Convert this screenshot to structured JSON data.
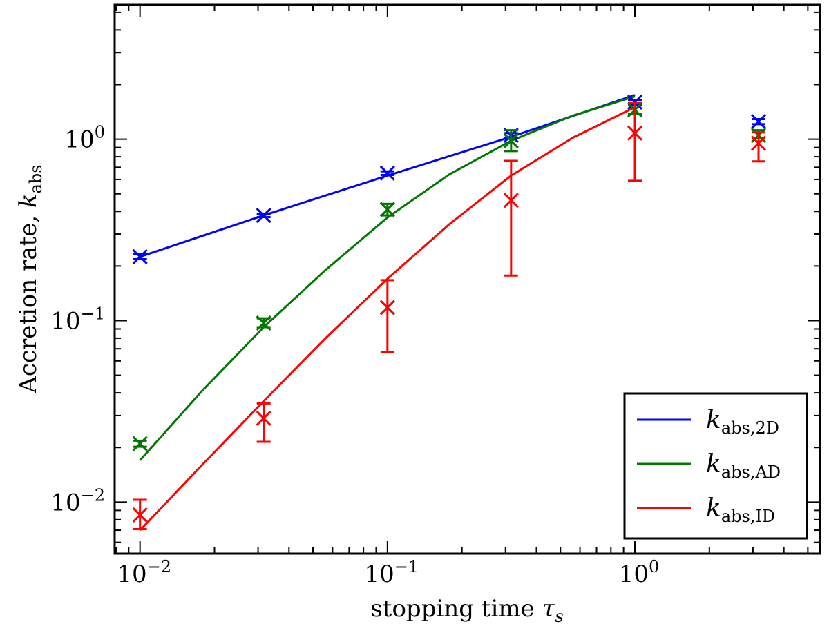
{
  "chart_data": {
    "type": "scatter",
    "title": "",
    "xlabel": "stopping time",
    "xlabel_symbol": "τ",
    "xlabel_sub": "s",
    "ylabel": "Accretion rate,",
    "ylabel_symbol": "k",
    "ylabel_sub": "abs",
    "xscale": "log",
    "yscale": "log",
    "xlim": [
      0.0079,
      5.6
    ],
    "ylim": [
      0.0052,
      5.5
    ],
    "x_ticks": [
      {
        "value": 0.01,
        "base": "10",
        "exp": "−2"
      },
      {
        "value": 0.1,
        "base": "10",
        "exp": "−1"
      },
      {
        "value": 1,
        "base": "10",
        "exp": "0"
      }
    ],
    "y_ticks": [
      {
        "value": 0.01,
        "base": "10",
        "exp": "−2"
      },
      {
        "value": 0.1,
        "base": "10",
        "exp": "−1"
      },
      {
        "value": 1,
        "base": "10",
        "exp": "0"
      }
    ],
    "legend_position": "bottom-right",
    "series": [
      {
        "name": "k_abs,2D",
        "legend_main": "k",
        "legend_sub": "abs,2D",
        "color": "#0000ff",
        "points": [
          {
            "x": 0.01,
            "y": 0.225,
            "lo": 0.218,
            "hi": 0.232
          },
          {
            "x": 0.0316,
            "y": 0.38,
            "lo": 0.372,
            "hi": 0.388
          },
          {
            "x": 0.1,
            "y": 0.65,
            "lo": 0.635,
            "hi": 0.665
          },
          {
            "x": 0.316,
            "y": 1.05,
            "lo": 1.02,
            "hi": 1.08
          },
          {
            "x": 1.0,
            "y": 1.6,
            "lo": 1.55,
            "hi": 1.65
          },
          {
            "x": 3.16,
            "y": 1.25,
            "lo": 1.21,
            "hi": 1.29
          }
        ],
        "fit": {
          "x": [
            0.01,
            0.0316,
            0.1,
            0.316,
            1.0
          ],
          "y": [
            0.225,
            0.38,
            0.63,
            1.03,
            1.75
          ]
        }
      },
      {
        "name": "k_abs,AD",
        "legend_main": "k",
        "legend_sub": "abs,AD",
        "color": "#007800",
        "points": [
          {
            "x": 0.01,
            "y": 0.021,
            "lo": 0.0202,
            "hi": 0.0218
          },
          {
            "x": 0.0316,
            "y": 0.097,
            "lo": 0.092,
            "hi": 0.103
          },
          {
            "x": 0.1,
            "y": 0.41,
            "lo": 0.38,
            "hi": 0.44
          },
          {
            "x": 0.316,
            "y": 0.98,
            "lo": 0.86,
            "hi": 1.12
          },
          {
            "x": 1.0,
            "y": 1.45,
            "lo": 1.38,
            "hi": 1.58
          },
          {
            "x": 3.16,
            "y": 1.05,
            "lo": 1.01,
            "hi": 1.12
          }
        ],
        "fit": {
          "x": [
            0.01,
            0.0178,
            0.0316,
            0.0562,
            0.1,
            0.178,
            0.316,
            0.562,
            1.0
          ],
          "y": [
            0.017,
            0.041,
            0.092,
            0.19,
            0.37,
            0.64,
            0.98,
            1.35,
            1.72
          ]
        }
      },
      {
        "name": "k_abs,ID",
        "legend_main": "k",
        "legend_sub": "abs,ID",
        "color": "#ff0000",
        "points": [
          {
            "x": 0.01,
            "y": 0.0085,
            "lo": 0.0071,
            "hi": 0.0103
          },
          {
            "x": 0.0316,
            "y": 0.029,
            "lo": 0.0215,
            "hi": 0.035
          },
          {
            "x": 0.1,
            "y": 0.118,
            "lo": 0.067,
            "hi": 0.167
          },
          {
            "x": 0.316,
            "y": 0.46,
            "lo": 0.177,
            "hi": 0.76
          },
          {
            "x": 1.0,
            "y": 1.08,
            "lo": 0.59,
            "hi": 1.58
          },
          {
            "x": 3.16,
            "y": 0.95,
            "lo": 0.755,
            "hi": 1.09
          }
        ],
        "fit": {
          "x": [
            0.01,
            0.0178,
            0.0316,
            0.0562,
            0.1,
            0.178,
            0.316,
            0.562,
            1.0
          ],
          "y": [
            0.007,
            0.016,
            0.036,
            0.08,
            0.17,
            0.34,
            0.63,
            1.02,
            1.5
          ]
        }
      }
    ]
  }
}
